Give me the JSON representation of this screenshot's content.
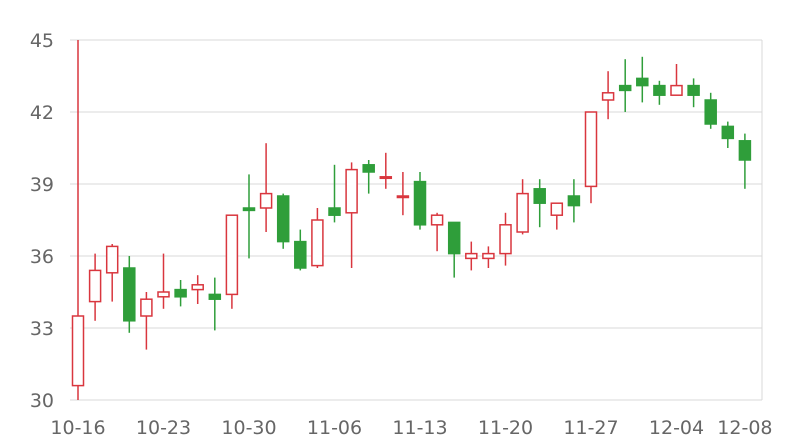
{
  "chart_data": {
    "type": "candlestick",
    "title": "",
    "xlabel": "",
    "ylabel": "",
    "ylim": [
      30,
      45
    ],
    "yticks": [
      30,
      33,
      36,
      39,
      42,
      45
    ],
    "xtick_labels": [
      "10-16",
      "10-23",
      "10-30",
      "11-06",
      "11-13",
      "11-20",
      "11-27",
      "12-04",
      "12-08"
    ],
    "grid": "horizontal",
    "colors": {
      "up": "#d9363e",
      "down": "#2f9e3a",
      "grid": "#d9d9d9",
      "text": "#666666"
    },
    "dates": [
      "10-16",
      "10-17",
      "10-18",
      "10-19",
      "10-20",
      "10-23",
      "10-24",
      "10-25",
      "10-26",
      "10-27",
      "10-30",
      "10-31",
      "11-01",
      "11-02",
      "11-03",
      "11-06",
      "11-07",
      "11-08",
      "11-09",
      "11-10",
      "11-13",
      "11-14",
      "11-15",
      "11-16",
      "11-17",
      "11-20",
      "11-21",
      "11-22",
      "11-23",
      "11-24",
      "11-27",
      "11-28",
      "11-29",
      "11-30",
      "12-01",
      "12-04",
      "12-05",
      "12-06",
      "12-07",
      "12-08"
    ],
    "open": [
      30.6,
      34.1,
      35.3,
      35.5,
      33.5,
      34.3,
      34.6,
      34.6,
      34.4,
      34.4,
      38.0,
      38.0,
      38.5,
      36.6,
      35.6,
      38.0,
      37.8,
      39.8,
      39.3,
      38.5,
      39.1,
      37.3,
      37.4,
      35.9,
      35.9,
      36.1,
      37.0,
      38.8,
      37.7,
      38.5,
      38.9,
      42.5,
      43.1,
      43.4,
      43.1,
      42.7,
      43.1,
      42.5,
      41.4,
      40.8
    ],
    "close": [
      33.5,
      35.4,
      36.4,
      33.3,
      34.2,
      34.5,
      34.3,
      34.8,
      34.2,
      37.7,
      37.9,
      38.6,
      36.6,
      35.5,
      37.5,
      37.7,
      39.6,
      39.5,
      39.3,
      38.5,
      37.3,
      37.7,
      36.1,
      36.1,
      36.1,
      37.3,
      38.6,
      38.2,
      38.2,
      38.1,
      42.0,
      42.8,
      42.9,
      43.1,
      42.7,
      43.1,
      42.7,
      41.5,
      40.9,
      40.0
    ],
    "high": [
      45.0,
      36.1,
      36.5,
      36.0,
      34.5,
      36.1,
      35.0,
      35.2,
      35.1,
      37.7,
      39.4,
      40.7,
      38.6,
      37.1,
      38.0,
      39.8,
      39.9,
      40.0,
      40.3,
      39.5,
      39.5,
      37.8,
      37.4,
      36.6,
      36.4,
      37.8,
      39.2,
      39.2,
      38.2,
      39.2,
      42.0,
      43.7,
      44.2,
      44.3,
      43.3,
      44.0,
      43.4,
      42.8,
      41.6,
      41.1
    ],
    "low": [
      30.0,
      33.3,
      34.1,
      32.8,
      32.1,
      33.8,
      33.9,
      34.0,
      32.9,
      33.8,
      35.9,
      37.0,
      36.3,
      35.4,
      35.5,
      37.4,
      35.5,
      38.6,
      38.8,
      37.7,
      37.1,
      36.2,
      35.1,
      35.4,
      35.5,
      35.6,
      36.9,
      37.2,
      37.1,
      37.4,
      38.2,
      41.7,
      42.0,
      42.4,
      42.3,
      42.7,
      42.2,
      41.3,
      40.5,
      38.8
    ]
  }
}
